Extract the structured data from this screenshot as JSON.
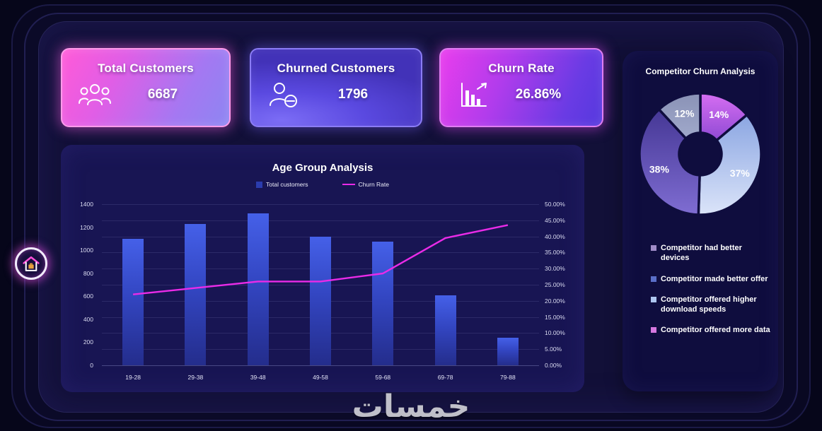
{
  "watermark": "خمسات",
  "theme": {
    "page_bg": "#06061a",
    "main_panel_bg": "#121038",
    "chart_panel_bg": "#181553",
    "side_panel_bg": "#0f0d3e",
    "bar_color": "#3346c2",
    "line_color": "#ea2be8",
    "accent_pink": "#ff57d8"
  },
  "kpis": [
    {
      "label": "Total Customers",
      "value": "6687"
    },
    {
      "label": "Churned Customers",
      "value": "1796"
    },
    {
      "label": "Churn Rate",
      "value": "26.86%"
    }
  ],
  "chart_data": [
    {
      "id": "age-group-analysis",
      "type": "bar",
      "title": "Age Group Analysis",
      "legend_position": "top",
      "grid": true,
      "categories": [
        "19-28",
        "29-38",
        "39-48",
        "49-58",
        "59-68",
        "69-78",
        "79-88"
      ],
      "series": [
        {
          "name": "Total customers",
          "kind": "bar",
          "axis": "left",
          "values": [
            1100,
            1230,
            1320,
            1120,
            1075,
            610,
            240
          ]
        },
        {
          "name": "Churn Rate",
          "kind": "line",
          "axis": "right",
          "values": [
            22,
            24,
            26,
            26,
            28.5,
            39.5,
            43.5
          ]
        }
      ],
      "left_axis": {
        "min": 0,
        "max": 1400,
        "ticks": [
          "1400",
          "1200",
          "1000",
          "800",
          "600",
          "400",
          "200",
          "0"
        ]
      },
      "right_axis": {
        "min": 0,
        "max": 50,
        "ticks": [
          "50.00%",
          "45.00%",
          "40.00%",
          "35.00%",
          "30.00%",
          "25.00%",
          "20.00%",
          "15.00%",
          "10.00%",
          "5.00%",
          "0.00%"
        ]
      }
    },
    {
      "id": "competitor-churn-analysis",
      "type": "pie",
      "title": "Competitor Churn Analysis",
      "donut": true,
      "slices_clockwise_from_top": [
        {
          "label": "Competitor offered more data",
          "pct": 14,
          "color_start": "#d66ef2",
          "color_end": "#8f4ad4"
        },
        {
          "label": "Competitor offered higher download speeds",
          "pct": 37,
          "color_start": "#8ba6e2",
          "color_end": "#dbe4f9"
        },
        {
          "label": "Competitor made better offer",
          "pct": 38,
          "color_start": "#453795",
          "color_end": "#7f6dd2"
        },
        {
          "label": "Competitor had better devices",
          "pct": 12,
          "color_start": "#8a92b6",
          "color_end": "#a0a9cb"
        }
      ],
      "legend": [
        {
          "label": "Competitor had better devices",
          "color": "#a08cc8"
        },
        {
          "label": "Competitor made better offer",
          "color": "#5a6fc8"
        },
        {
          "label": "Competitor offered higher download speeds",
          "color": "#aec6ef"
        },
        {
          "label": "Competitor offered more data",
          "color": "#d678e0"
        }
      ]
    }
  ]
}
